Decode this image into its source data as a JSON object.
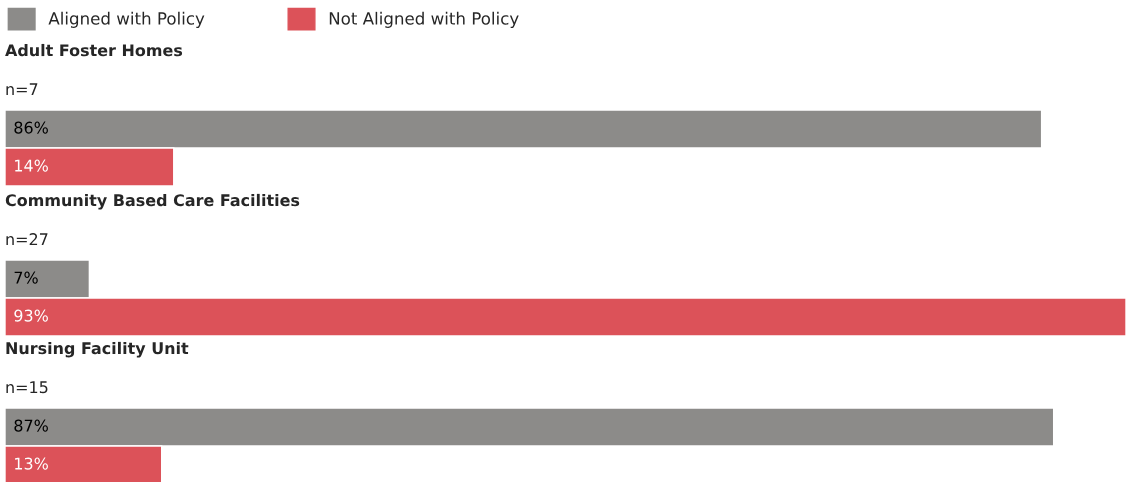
{
  "chart_data": [
    {
      "type": "bar",
      "orientation": "horizontal",
      "title": "Adult Foster Homes",
      "subtitle": "n=7",
      "categories": [
        null
      ],
      "data_labels": true,
      "legend": "top left",
      "series": [
        {
          "name": "Aligned with Policy",
          "color": "#8c8b89",
          "values": [
            86
          ],
          "value_labels": [
            "86%"
          ]
        },
        {
          "name": "Not Aligned with Policy",
          "color": "#dc5259",
          "values": [
            14
          ],
          "value_labels": [
            "14%"
          ]
        }
      ]
    },
    {
      "type": "bar",
      "orientation": "horizontal",
      "title": "Community Based Care Facilities",
      "subtitle": "n=27",
      "categories": [
        null
      ],
      "data_labels": true,
      "series": [
        {
          "color": "#8c8b89",
          "values": [
            7
          ],
          "value_labels": [
            "7%"
          ]
        },
        {
          "color": "#dc5259",
          "values": [
            93
          ],
          "value_labels": [
            "93%"
          ]
        }
      ]
    },
    {
      "type": "bar",
      "orientation": "horizontal",
      "title": "Nursing Facility Unit",
      "subtitle": "n=15",
      "categories": [
        null
      ],
      "data_labels": true,
      "series": [
        {
          "color": "#8c8b89",
          "values": [
            87
          ],
          "value_labels": [
            "87%"
          ]
        },
        {
          "color": "#dc5259",
          "values": [
            13
          ],
          "value_labels": [
            "13%"
          ]
        }
      ]
    }
  ]
}
